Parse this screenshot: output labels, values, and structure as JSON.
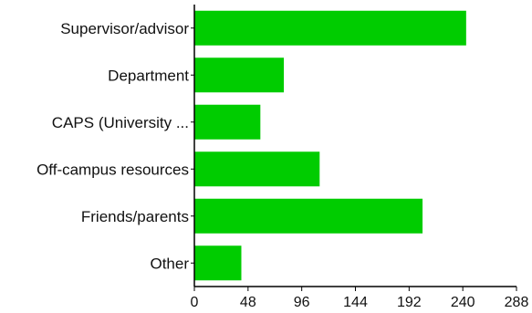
{
  "chart_data": {
    "type": "bar",
    "orientation": "horizontal",
    "categories": [
      "Supervisor/advisor",
      "Department",
      "CAPS (University ...",
      "Off-campus resources",
      "Friends/parents",
      "Other"
    ],
    "values": [
      243,
      80,
      59,
      112,
      204,
      42
    ],
    "bar_color": "#00cc00",
    "xlim": [
      0,
      288
    ],
    "xticks": [
      0,
      48,
      96,
      144,
      192,
      240,
      288
    ],
    "grid": false,
    "legend": "none"
  }
}
